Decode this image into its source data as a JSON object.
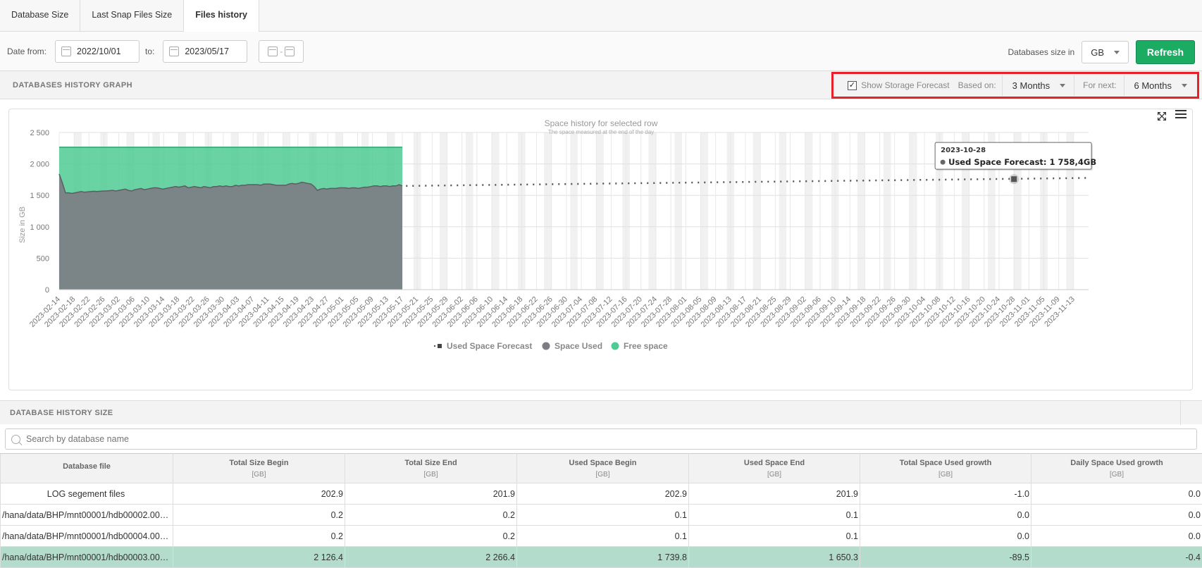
{
  "tabs": [
    {
      "label": "Database Size"
    },
    {
      "label": "Last Snap Files Size"
    },
    {
      "label": "Files history"
    }
  ],
  "filters": {
    "date_from_label": "Date from:",
    "date_from": "2022/10/01",
    "to_label": "to:",
    "date_to": "2023/05/17",
    "unit_label": "Databases size in",
    "unit": "GB",
    "refresh_label": "Refresh"
  },
  "graph_section": {
    "title": "DATABASES HISTORY GRAPH",
    "forecast": {
      "show_label": "Show Storage Forecast",
      "checked": true,
      "based_on_label": "Based on:",
      "based_on": "3 Months",
      "for_next_label": "For next:",
      "for_next": "6 Months"
    }
  },
  "chart_data": {
    "type": "area",
    "title": "Space history for selected row",
    "subtitle": "The space measured at the end of the day",
    "ylabel": "Size in GB",
    "ylim": [
      0,
      2500
    ],
    "y_ticks": [
      "0",
      "500",
      "1 000",
      "1 500",
      "2 000",
      "2 500"
    ],
    "x_tick_labels": [
      "2023-02-14",
      "2023-02-18",
      "2023-02-22",
      "2023-02-26",
      "2023-03-02",
      "2023-03-06",
      "2023-03-10",
      "2023-03-14",
      "2023-03-18",
      "2023-03-22",
      "2023-03-26",
      "2023-03-30",
      "2023-04-03",
      "2023-04-07",
      "2023-04-11",
      "2023-04-15",
      "2023-04-19",
      "2023-04-23",
      "2023-04-27",
      "2023-05-01",
      "2023-05-05",
      "2023-05-09",
      "2023-05-13",
      "2023-05-17",
      "2023-05-21",
      "2023-05-25",
      "2023-05-29",
      "2023-06-02",
      "2023-06-06",
      "2023-06-10",
      "2023-06-14",
      "2023-06-18",
      "2023-06-22",
      "2023-06-26",
      "2023-06-30",
      "2023-07-04",
      "2023-07-08",
      "2023-07-12",
      "2023-07-16",
      "2023-07-20",
      "2023-07-24",
      "2023-07-28",
      "2023-08-01",
      "2023-08-05",
      "2023-08-09",
      "2023-08-13",
      "2023-08-17",
      "2023-08-21",
      "2023-08-25",
      "2023-08-29",
      "2023-09-02",
      "2023-09-06",
      "2023-09-10",
      "2023-09-14",
      "2023-09-18",
      "2023-09-22",
      "2023-09-26",
      "2023-09-30",
      "2023-10-04",
      "2023-10-08",
      "2023-10-12",
      "2023-10-16",
      "2023-10-20",
      "2023-10-24",
      "2023-10-28",
      "2023-11-01",
      "2023-11-05",
      "2023-11-09",
      "2023-11-13"
    ],
    "series": [
      {
        "name": "Space Used",
        "color": "#7d7e84",
        "x_start": "2023-02-14",
        "values": [
          1840,
          1700,
          1540,
          1540,
          1530,
          1540,
          1550,
          1560,
          1550,
          1555,
          1560,
          1565,
          1560,
          1565,
          1570,
          1570,
          1575,
          1580,
          1570,
          1580,
          1590,
          1600,
          1580,
          1570,
          1590,
          1600,
          1610,
          1590,
          1600,
          1610,
          1620,
          1620,
          1610,
          1600,
          1610,
          1620,
          1630,
          1640,
          1630,
          1640,
          1650,
          1620,
          1630,
          1640,
          1630,
          1620,
          1640,
          1630,
          1620,
          1640,
          1640,
          1650,
          1640,
          1650,
          1640,
          1640,
          1660,
          1650,
          1660,
          1660,
          1670,
          1670,
          1670,
          1670,
          1660,
          1680,
          1680,
          1680,
          1670,
          1660,
          1660,
          1660,
          1660,
          1680,
          1690,
          1680,
          1690,
          1710,
          1700,
          1690,
          1680,
          1640,
          1580,
          1600,
          1610,
          1600,
          1610,
          1610,
          1610,
          1620,
          1620,
          1620,
          1610,
          1620,
          1620,
          1610,
          1620,
          1630,
          1630,
          1640,
          1650,
          1650,
          1640,
          1650,
          1650,
          1640,
          1650,
          1650,
          1670,
          1650
        ]
      },
      {
        "name": "Free space",
        "color": "#4fcb94",
        "total_value": 2266.4
      },
      {
        "name": "Used Space Forecast",
        "color": "#555555",
        "x_start": "2023-05-18",
        "x_end": "2023-11-17",
        "start_value": 1650,
        "end_value": 1777
      }
    ],
    "tooltip": {
      "date": "2023-10-28",
      "label": "Used Space Forecast",
      "value_text": "1 758,4GB",
      "value": 1758.4
    },
    "legend": "bottom"
  },
  "table_section": {
    "title": "DATABASE HISTORY SIZE",
    "search_placeholder": "Search by database name",
    "columns": [
      {
        "label": "Database file",
        "unit": ""
      },
      {
        "label": "Total Size Begin",
        "unit": "[GB]"
      },
      {
        "label": "Total Size End",
        "unit": "[GB]"
      },
      {
        "label": "Used Space Begin",
        "unit": "[GB]"
      },
      {
        "label": "Used Space End",
        "unit": "[GB]"
      },
      {
        "label": "Total Space Used growth",
        "unit": "[GB]"
      },
      {
        "label": "Daily Space Used growth",
        "unit": "[GB]"
      }
    ],
    "rows": [
      {
        "selected": false,
        "cells": [
          "LOG segement files",
          "202.9",
          "201.9",
          "202.9",
          "201.9",
          "-1.0",
          "0.0"
        ]
      },
      {
        "selected": false,
        "cells": [
          "/hana/data/BHP/mnt00001/hdb00002.000...",
          "0.2",
          "0.2",
          "0.1",
          "0.1",
          "0.0",
          "0.0"
        ]
      },
      {
        "selected": false,
        "cells": [
          "/hana/data/BHP/mnt00001/hdb00004.000...",
          "0.2",
          "0.2",
          "0.1",
          "0.1",
          "0.0",
          "0.0"
        ]
      },
      {
        "selected": true,
        "cells": [
          "/hana/data/BHP/mnt00001/hdb00003.000...",
          "2 126.4",
          "2 266.4",
          "1 739.8",
          "1 650.3",
          "-89.5",
          "-0.4"
        ]
      }
    ]
  }
}
